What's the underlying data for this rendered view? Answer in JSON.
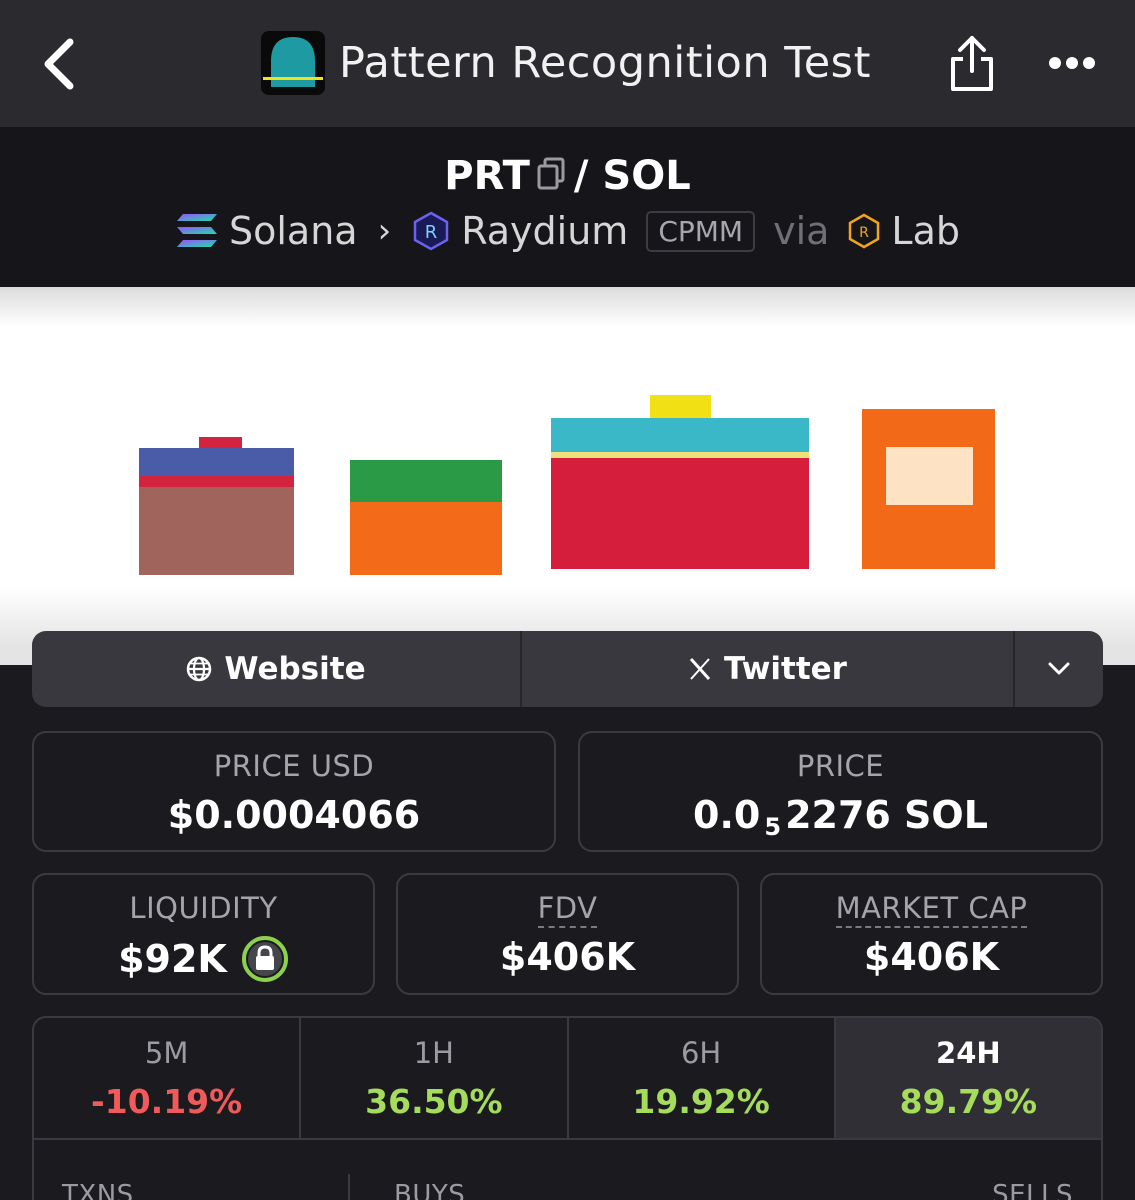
{
  "app_bar": {
    "title": "Pattern Recognition Test",
    "back_icon": "chevron-left-icon",
    "share_icon": "share-icon",
    "more_icon": "more-horizontal-icon"
  },
  "pair": {
    "base": "PRT",
    "separator": "/",
    "quote": "SOL",
    "chain": "Solana",
    "dex": "Raydium",
    "pool_type": "CPMM",
    "via_label": "via",
    "launchpad": "Lab"
  },
  "links": {
    "website": "Website",
    "twitter": "Twitter"
  },
  "stats": {
    "price_usd_label": "PRICE USD",
    "price_usd_value": "$0.0004066",
    "price_label": "PRICE",
    "price_prefix": "0.0",
    "price_zeros": "5",
    "price_digits": "2276 SOL",
    "liquidity_label": "LIQUIDITY",
    "liquidity_value": "$92K",
    "fdv_label": "FDV",
    "fdv_value": "$406K",
    "mcap_label": "MARKET CAP",
    "mcap_value": "$406K"
  },
  "changes": [
    {
      "period": "5M",
      "value": "-10.19%",
      "color": "#f05a5a"
    },
    {
      "period": "1H",
      "value": "36.50%",
      "color": "#a6dc5c"
    },
    {
      "period": "6H",
      "value": "19.92%",
      "color": "#a6dc5c"
    },
    {
      "period": "24H",
      "value": "89.79%",
      "color": "#a6dc5c"
    }
  ],
  "txn_headers": {
    "txns": "TXNS",
    "buys": "BUYS",
    "sells": "SELLS"
  },
  "colors": {
    "positive": "#a6dc5c",
    "negative": "#f05a5a",
    "lock_ring": "#8bd14b"
  }
}
